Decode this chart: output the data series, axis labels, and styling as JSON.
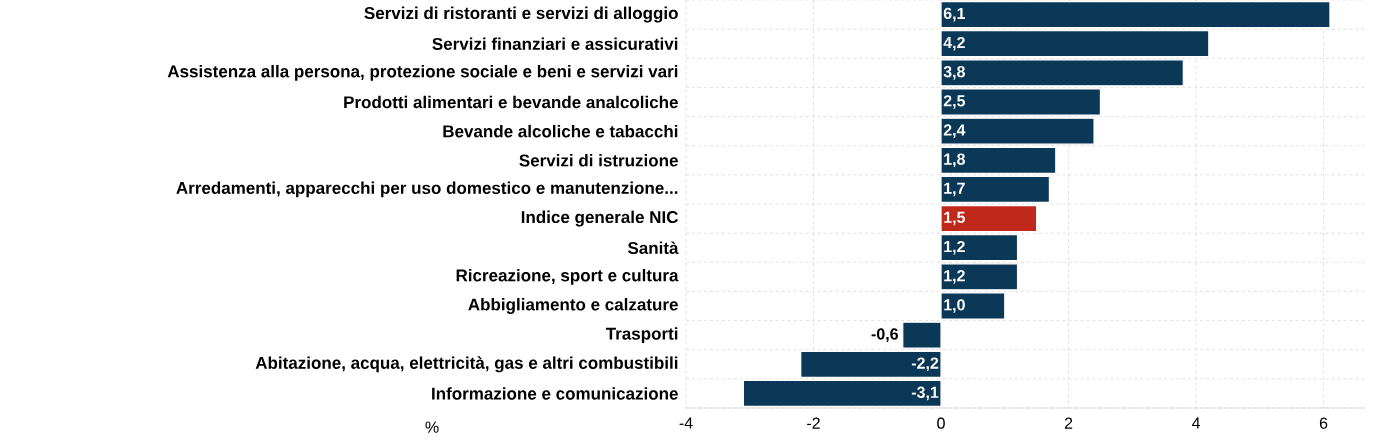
{
  "chart_data": {
    "type": "bar",
    "orientation": "horizontal",
    "categories": [
      "Servizi di ristoranti e servizi di alloggio",
      "Servizi finanziari e assicurativi",
      "Assistenza alla persona, protezione sociale e beni e servizi vari",
      "Prodotti alimentari e bevande analcoliche",
      "Bevande alcoliche e tabacchi",
      "Servizi di istruzione",
      "Arredamenti, apparecchi per uso domestico e manutenzione...",
      "Indice generale NIC",
      "Sanità",
      "Ricreazione, sport e cultura",
      "Abbigliamento e calzature",
      "Trasporti",
      "Abitazione, acqua, elettricità, gas e altri combustibili",
      "Informazione e comunicazione"
    ],
    "values": [
      6.1,
      4.2,
      3.8,
      2.5,
      2.4,
      1.8,
      1.7,
      1.5,
      1.2,
      1.2,
      1.0,
      -0.6,
      -2.2,
      -3.1
    ],
    "colors": [
      "#0c3858",
      "#0c3858",
      "#0c3858",
      "#0c3858",
      "#0c3858",
      "#0c3858",
      "#0c3858",
      "#c0281c",
      "#0c3858",
      "#0c3858",
      "#0c3858",
      "#0c3858",
      "#0c3858",
      "#0c3858"
    ],
    "value_labels": [
      "6,1",
      "4,2",
      "3,8",
      "2,5",
      "2,4",
      "1,8",
      "1,7",
      "1,5",
      "1,2",
      "1,2",
      "1,0",
      "-0,6",
      "-2,2",
      "-3,1"
    ],
    "xlabel": "%",
    "xlim": [
      -4,
      6.65
    ],
    "xticks": [
      -4,
      -2,
      0,
      2,
      4,
      6
    ],
    "grid": true
  }
}
